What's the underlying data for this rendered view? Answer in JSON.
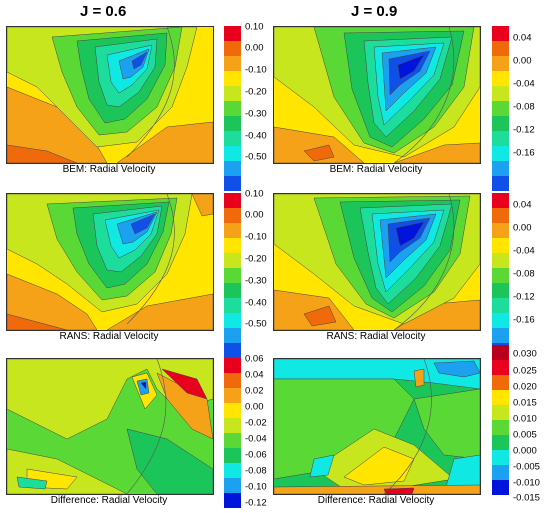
{
  "col_titles": [
    "J = 0.6",
    "J = 0.9"
  ],
  "chart_data": [
    {
      "type": "heatmap",
      "title": "BEM: Radial Velocity",
      "case": "J = 0.6",
      "colorbar": {
        "ticks": [
          "0.10",
          "0.00",
          "-0.10",
          "-0.20",
          "-0.30",
          "-0.40",
          "-0.50"
        ],
        "range": [
          -0.55,
          0.1
        ]
      }
    },
    {
      "type": "heatmap",
      "title": "BEM: Radial Velocity",
      "case": "J = 0.9",
      "colorbar": {
        "ticks": [
          "0.04",
          "0.00",
          "-0.04",
          "-0.08",
          "-0.12",
          "-0.16"
        ],
        "range": [
          -0.18,
          0.05
        ]
      }
    },
    {
      "type": "heatmap",
      "title": "RANS: Radial Velocity",
      "case": "J = 0.6",
      "colorbar": {
        "ticks": [
          "0.10",
          "0.00",
          "-0.10",
          "-0.20",
          "-0.30",
          "-0.40",
          "-0.50"
        ],
        "range": [
          -0.55,
          0.1
        ]
      }
    },
    {
      "type": "heatmap",
      "title": "RANS: Radial Velocity",
      "case": "J = 0.9",
      "colorbar": {
        "ticks": [
          "0.04",
          "0.00",
          "-0.04",
          "-0.08",
          "-0.12",
          "-0.16"
        ],
        "range": [
          -0.18,
          0.05
        ]
      }
    },
    {
      "type": "heatmap",
      "title": "Difference: Radial Velocity",
      "case": "J = 0.6",
      "colorbar": {
        "ticks": [
          "0.06",
          "0.04",
          "0.02",
          "0.00",
          "-0.02",
          "-0.04",
          "-0.06",
          "-0.08",
          "-0.10",
          "-0.12"
        ],
        "range": [
          -0.12,
          0.06
        ]
      }
    },
    {
      "type": "heatmap",
      "title": "Difference: Radial Velocity",
      "case": "J = 0.9",
      "colorbar": {
        "ticks": [
          "0.030",
          "0.025",
          "0.020",
          "0.015",
          "0.010",
          "0.005",
          "0.000",
          "-0.005",
          "-0.010",
          "-0.015"
        ],
        "range": [
          -0.015,
          0.03
        ]
      }
    }
  ],
  "palette": [
    "#e8001c",
    "#f06a0c",
    "#f5a218",
    "#ffe500",
    "#c8e61e",
    "#5ad835",
    "#1cc55a",
    "#1cdd9c",
    "#10e8e4",
    "#1ca0f0",
    "#1050e8",
    "#0014dc"
  ]
}
